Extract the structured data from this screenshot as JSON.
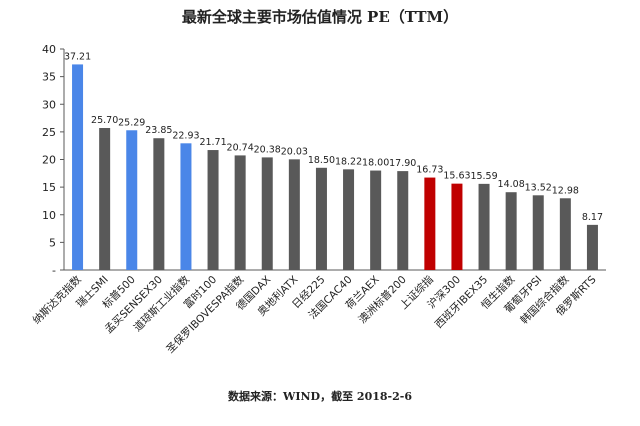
{
  "chart_data": {
    "type": "bar",
    "title": "最新全球主要市场估值情况 PE（TTM）",
    "source": "数据来源：WIND，截至 2018-2-6",
    "ylim": [
      0,
      40
    ],
    "yticks": [
      "-",
      "5",
      "10",
      "15",
      "20",
      "25",
      "30",
      "35",
      "40"
    ],
    "grid": false,
    "legend": "none",
    "categories": [
      "纳斯达克指数",
      "瑞士SMI",
      "标普500",
      "孟买SENSEX30",
      "道琼斯工业指数",
      "富时100",
      "圣保罗IBOVESPA指数",
      "德国DAX",
      "奥地利ATX",
      "日经225",
      "法国CAC40",
      "荷兰AEX",
      "澳洲标普200",
      "上证综指",
      "沪深300",
      "西班牙IBEX35",
      "恒生指数",
      "葡萄牙PSI",
      "韩国综合指数",
      "俄罗斯RTS"
    ],
    "values": [
      37.21,
      25.7,
      25.29,
      23.85,
      22.93,
      21.71,
      20.74,
      20.38,
      20.03,
      18.5,
      18.22,
      18.0,
      17.9,
      16.73,
      15.63,
      15.59,
      14.08,
      13.52,
      12.98,
      8.17
    ],
    "value_labels": [
      "37.21",
      "25.70",
      "25.29",
      "23.85",
      "22.93",
      "21.71",
      "20.74",
      "20.38",
      "20.03",
      "18.50",
      "18.22",
      "18.00",
      "17.90",
      "16.73",
      "15.63",
      "15.59",
      "14.08",
      "13.52",
      "12.98",
      "8.17"
    ],
    "colors": [
      "#4A86E8",
      "#595959",
      "#4A86E8",
      "#595959",
      "#4A86E8",
      "#595959",
      "#595959",
      "#595959",
      "#595959",
      "#595959",
      "#595959",
      "#595959",
      "#595959",
      "#C00000",
      "#C00000",
      "#595959",
      "#595959",
      "#595959",
      "#595959",
      "#595959"
    ],
    "axis_color": "#595959"
  }
}
